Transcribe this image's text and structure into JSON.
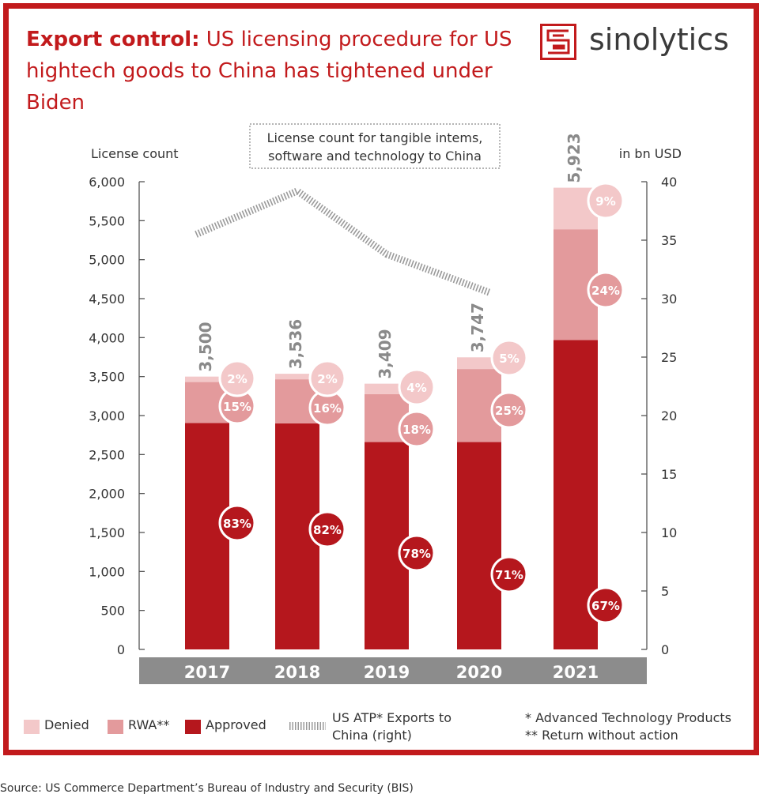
{
  "header": {
    "title_bold": "Export control:",
    "title_rest": "US licensing procedure for US hightech goods to China has tightened under Biden"
  },
  "logo": {
    "text": "sinolytics",
    "icon": "sinolytics-logo-icon"
  },
  "colors": {
    "brand_red": "#c21a1c",
    "approved": "#b5171d",
    "rwa": "#e39a9c",
    "denied": "#f3c8c9",
    "line": "#9a9a9a",
    "axis_band": "#8c8c8c"
  },
  "chart_data": {
    "type": "bar",
    "stacked": true,
    "categories": [
      "2017",
      "2018",
      "2019",
      "2020",
      "2021"
    ],
    "totals": [
      3500,
      3536,
      3409,
      3747,
      5923
    ],
    "total_labels": [
      "3,500",
      "3,536",
      "3,409",
      "3,747",
      "5,923"
    ],
    "series": [
      {
        "name": "Approved",
        "values": [
          2905,
          2900,
          2660,
          2660,
          3968
        ],
        "percent_labels": [
          "83%",
          "82%",
          "78%",
          "71%",
          "67%"
        ]
      },
      {
        "name": "RWA**",
        "values": [
          525,
          565,
          614,
          937,
          1422
        ],
        "percent_labels": [
          "15%",
          "16%",
          "18%",
          "25%",
          "24%"
        ]
      },
      {
        "name": "Denied",
        "values": [
          70,
          71,
          135,
          150,
          533
        ],
        "percent_labels": [
          "2%",
          "2%",
          "4%",
          "5%",
          "9%"
        ]
      }
    ],
    "line_series": {
      "name": "US ATP* Exports to China (right)",
      "x": [
        "2017",
        "2018",
        "2019",
        "2020"
      ],
      "values": [
        35.5,
        39.2,
        33.8,
        30.5
      ]
    },
    "ylabel_left": "License count",
    "ylabel_right": "in bn USD",
    "ylim_left": [
      0,
      6000
    ],
    "ylim_right": [
      0,
      40
    ],
    "yticks_left": [
      "0",
      "500",
      "1,000",
      "1,500",
      "2,000",
      "2,500",
      "3,000",
      "3,500",
      "4,000",
      "4,500",
      "5,000",
      "5,500",
      "6,000"
    ],
    "yticks_right": [
      "0",
      "5",
      "10",
      "15",
      "20",
      "25",
      "30",
      "35",
      "40"
    ],
    "annotation": "License count for tangible intems, software and technology to China",
    "legend": {
      "denied": "Denied",
      "rwa": "RWA**",
      "approved": "Approved",
      "line": "US ATP* Exports to China (right)"
    }
  },
  "footnotes": {
    "atp": "* Advanced Technology Products",
    "rwa": "** Return without action"
  },
  "source": "Source: US Commerce Department’s Bureau of Industry and Security (BIS)"
}
